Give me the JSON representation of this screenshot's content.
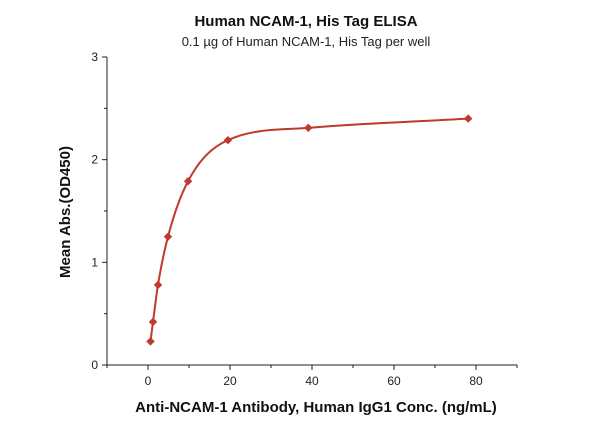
{
  "chart_data": {
    "type": "scatter",
    "title": "Human NCAM-1, His Tag ELISA",
    "subtitle": "0.1 µg of Human NCAM-1, His Tag per well",
    "xlabel": "Anti-NCAM-1 Antibody, Human IgG1 Conc. (ng/mL)",
    "ylabel": "Mean Abs.(OD450)",
    "xlim": [
      -10,
      90
    ],
    "ylim": [
      0,
      3
    ],
    "x_ticks": [
      0,
      20,
      40,
      60,
      80
    ],
    "y_ticks": [
      0,
      1,
      2,
      3
    ],
    "x_tick_labels": [
      "0",
      "20",
      "40",
      "60",
      "80"
    ],
    "y_tick_labels": [
      "0",
      "1",
      "2",
      "3"
    ],
    "grid": false,
    "colors": {
      "series": "#c0392b"
    },
    "series": [
      {
        "marker": "diamond",
        "x": [
          0.61,
          1.22,
          2.44,
          4.88,
          9.77,
          19.5,
          39.1,
          78.1
        ],
        "y": [
          0.23,
          0.42,
          0.78,
          1.25,
          1.79,
          2.19,
          2.31,
          2.4
        ]
      }
    ]
  }
}
